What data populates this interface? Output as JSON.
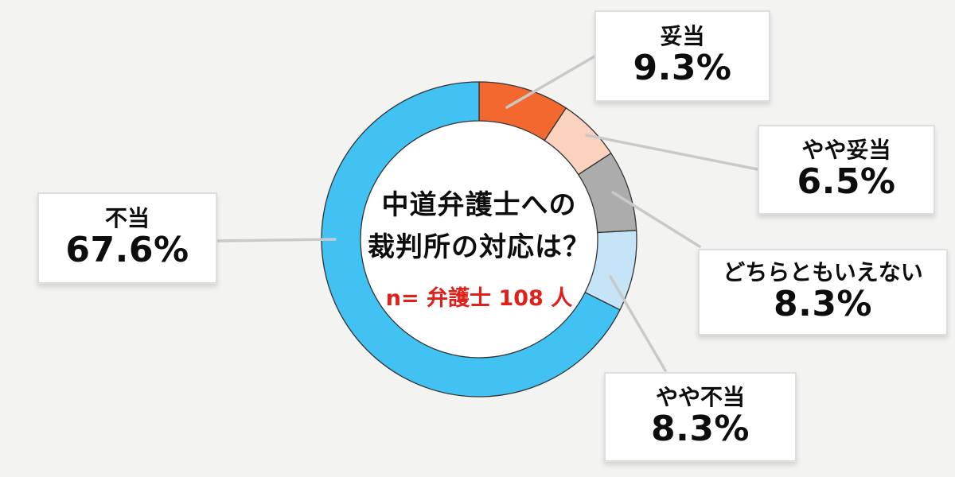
{
  "chart_data": {
    "type": "pie",
    "donut": true,
    "start_angle_deg": 0,
    "clockwise": true,
    "title": "中道弁護士への裁判所の対応は？",
    "sample_note": "n= 弁護士 108 人",
    "total": 100,
    "segments": [
      {
        "label": "妥当",
        "value": 9.3,
        "display": "9.3%",
        "color": "#f2682e"
      },
      {
        "label": "やや妥当",
        "value": 6.5,
        "display": "6.5%",
        "color": "#fad2be"
      },
      {
        "label": "どちらともいえない",
        "value": 8.3,
        "display": "8.3%",
        "color": "#acacac"
      },
      {
        "label": "やや不当",
        "value": 8.3,
        "display": "8.3%",
        "color": "#c5e4f8"
      },
      {
        "label": "不当",
        "value": 67.6,
        "display": "67.6%",
        "color": "#41c2f2"
      }
    ],
    "segment_outline_color": "#333333",
    "hole_color": "#ffffff",
    "connector_color": "#c9c9c9"
  },
  "center": {
    "title_line1": "中道弁護士への",
    "title_line2": "裁判所の対応は？",
    "sample_note": "n= 弁護士 108 人",
    "note_color": "#e0201b"
  }
}
